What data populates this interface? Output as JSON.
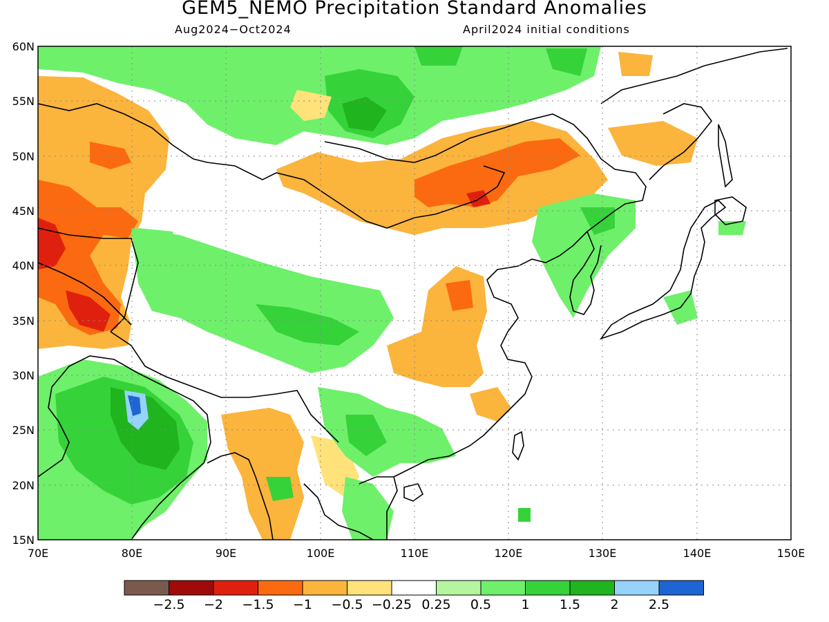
{
  "title": "GEM5_NEMO Precipitation Standard Anomalies",
  "subtitle_left": "Aug2024−Oct2024",
  "subtitle_right": "April2024 initial conditions",
  "lat_labels": [
    "60N",
    "55N",
    "50N",
    "45N",
    "40N",
    "35N",
    "30N",
    "25N",
    "20N",
    "15N"
  ],
  "lon_labels": [
    "70E",
    "80E",
    "90E",
    "100E",
    "110E",
    "120E",
    "130E",
    "140E",
    "150E"
  ],
  "colorbar": {
    "colors": [
      "#7b5a4e",
      "#a00a0a",
      "#e0200e",
      "#fb6a10",
      "#fbb43c",
      "#ffe27a",
      "#ffffff",
      "#b4f5a0",
      "#6ef06a",
      "#36d23a",
      "#20b41e",
      "#96d2fa",
      "#1e64d2"
    ],
    "tick_labels": [
      "−2.5",
      "−2",
      "−1.5",
      "−1",
      "−0.5",
      "−0.25",
      "0.25",
      "0.5",
      "1",
      "1.5",
      "2",
      "2.5"
    ]
  },
  "map": {
    "lon_range": [
      70,
      150
    ],
    "lat_range": [
      15,
      60
    ],
    "grid": "dotted"
  }
}
